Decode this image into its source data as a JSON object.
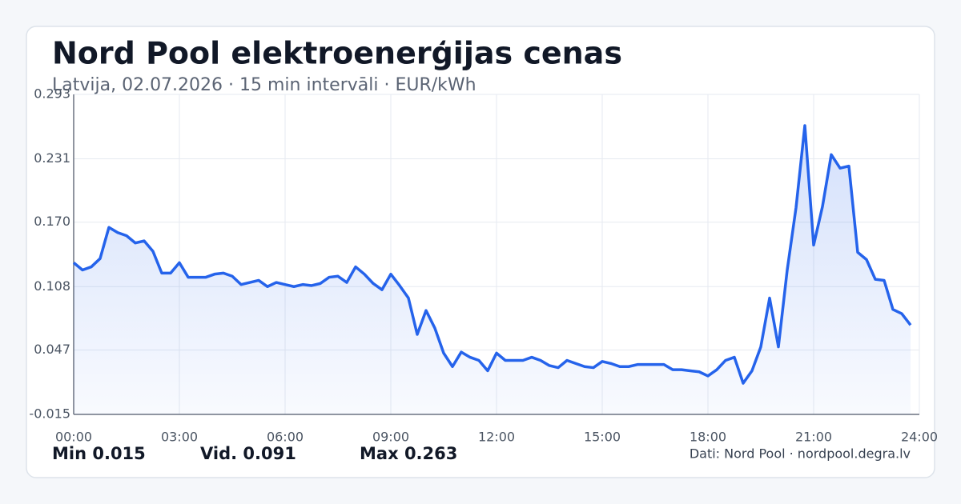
{
  "chart_data": {
    "type": "line",
    "title": "Nord Pool elektroenerģijas cenas",
    "subtitle": "Latvija, 02.07.2026 · 15 min intervāli · EUR/kWh",
    "x": [
      0,
      0.25,
      0.5,
      0.75,
      1,
      1.25,
      1.5,
      1.75,
      2,
      2.25,
      2.5,
      2.75,
      3,
      3.25,
      3.5,
      3.75,
      4,
      4.25,
      4.5,
      4.75,
      5,
      5.25,
      5.5,
      5.75,
      6,
      6.25,
      6.5,
      6.75,
      7,
      7.25,
      7.5,
      7.75,
      8,
      8.25,
      8.5,
      8.75,
      9,
      9.25,
      9.5,
      9.75,
      10,
      10.25,
      10.5,
      10.75,
      11,
      11.25,
      11.5,
      11.75,
      12,
      12.25,
      12.5,
      12.75,
      13,
      13.25,
      13.5,
      13.75,
      14,
      14.25,
      14.5,
      14.75,
      15,
      15.25,
      15.5,
      15.75,
      16,
      16.25,
      16.5,
      16.75,
      17,
      17.25,
      17.5,
      17.75,
      18,
      18.25,
      18.5,
      18.75,
      19,
      19.25,
      19.5,
      19.75,
      20,
      20.25,
      20.5,
      20.75,
      21,
      21.25,
      21.5,
      21.75,
      22,
      22.25,
      22.5,
      22.75,
      23,
      23.25,
      23.5,
      23.75
    ],
    "series": [
      {
        "name": "Cena",
        "color": "#2563eb",
        "values": [
          0.131,
          0.124,
          0.127,
          0.135,
          0.165,
          0.16,
          0.157,
          0.15,
          0.152,
          0.142,
          0.121,
          0.121,
          0.131,
          0.117,
          0.117,
          0.117,
          0.12,
          0.121,
          0.118,
          0.11,
          0.112,
          0.114,
          0.108,
          0.112,
          0.11,
          0.108,
          0.11,
          0.109,
          0.111,
          0.117,
          0.118,
          0.112,
          0.127,
          0.12,
          0.111,
          0.105,
          0.12,
          0.109,
          0.097,
          0.062,
          0.085,
          0.068,
          0.044,
          0.031,
          0.045,
          0.04,
          0.037,
          0.027,
          0.044,
          0.037,
          0.037,
          0.037,
          0.04,
          0.037,
          0.032,
          0.03,
          0.037,
          0.034,
          0.031,
          0.03,
          0.036,
          0.034,
          0.031,
          0.031,
          0.033,
          0.033,
          0.033,
          0.033,
          0.028,
          0.028,
          0.027,
          0.026,
          0.022,
          0.028,
          0.037,
          0.04,
          0.015,
          0.027,
          0.05,
          0.097,
          0.05,
          0.124,
          0.184,
          0.263,
          0.148,
          0.185,
          0.235,
          0.222,
          0.224,
          0.141,
          0.134,
          0.115,
          0.114,
          0.086,
          0.082,
          0.071
        ]
      }
    ],
    "xlim": [
      0,
      24
    ],
    "xticks": [
      {
        "value": 0,
        "label": "00:00"
      },
      {
        "value": 3,
        "label": "03:00"
      },
      {
        "value": 6,
        "label": "06:00"
      },
      {
        "value": 9,
        "label": "09:00"
      },
      {
        "value": 12,
        "label": "12:00"
      },
      {
        "value": 15,
        "label": "15:00"
      },
      {
        "value": 18,
        "label": "18:00"
      },
      {
        "value": 21,
        "label": "21:00"
      },
      {
        "value": 24,
        "label": "24:00"
      }
    ],
    "ylim": [
      -0.015,
      0.293
    ],
    "yticks": [
      -0.015,
      0.047,
      0.108,
      {
        "value": 0.17,
        "label": "0.170"
      },
      0.231,
      0.293
    ],
    "grid": true
  },
  "stats": [
    {
      "label": "Min",
      "value": 0.015
    },
    {
      "label": "Vid.",
      "value": 0.091
    },
    {
      "label": "Max",
      "value": 0.263
    }
  ],
  "source": "Dati: Nord Pool · nordpool.degra.lv"
}
